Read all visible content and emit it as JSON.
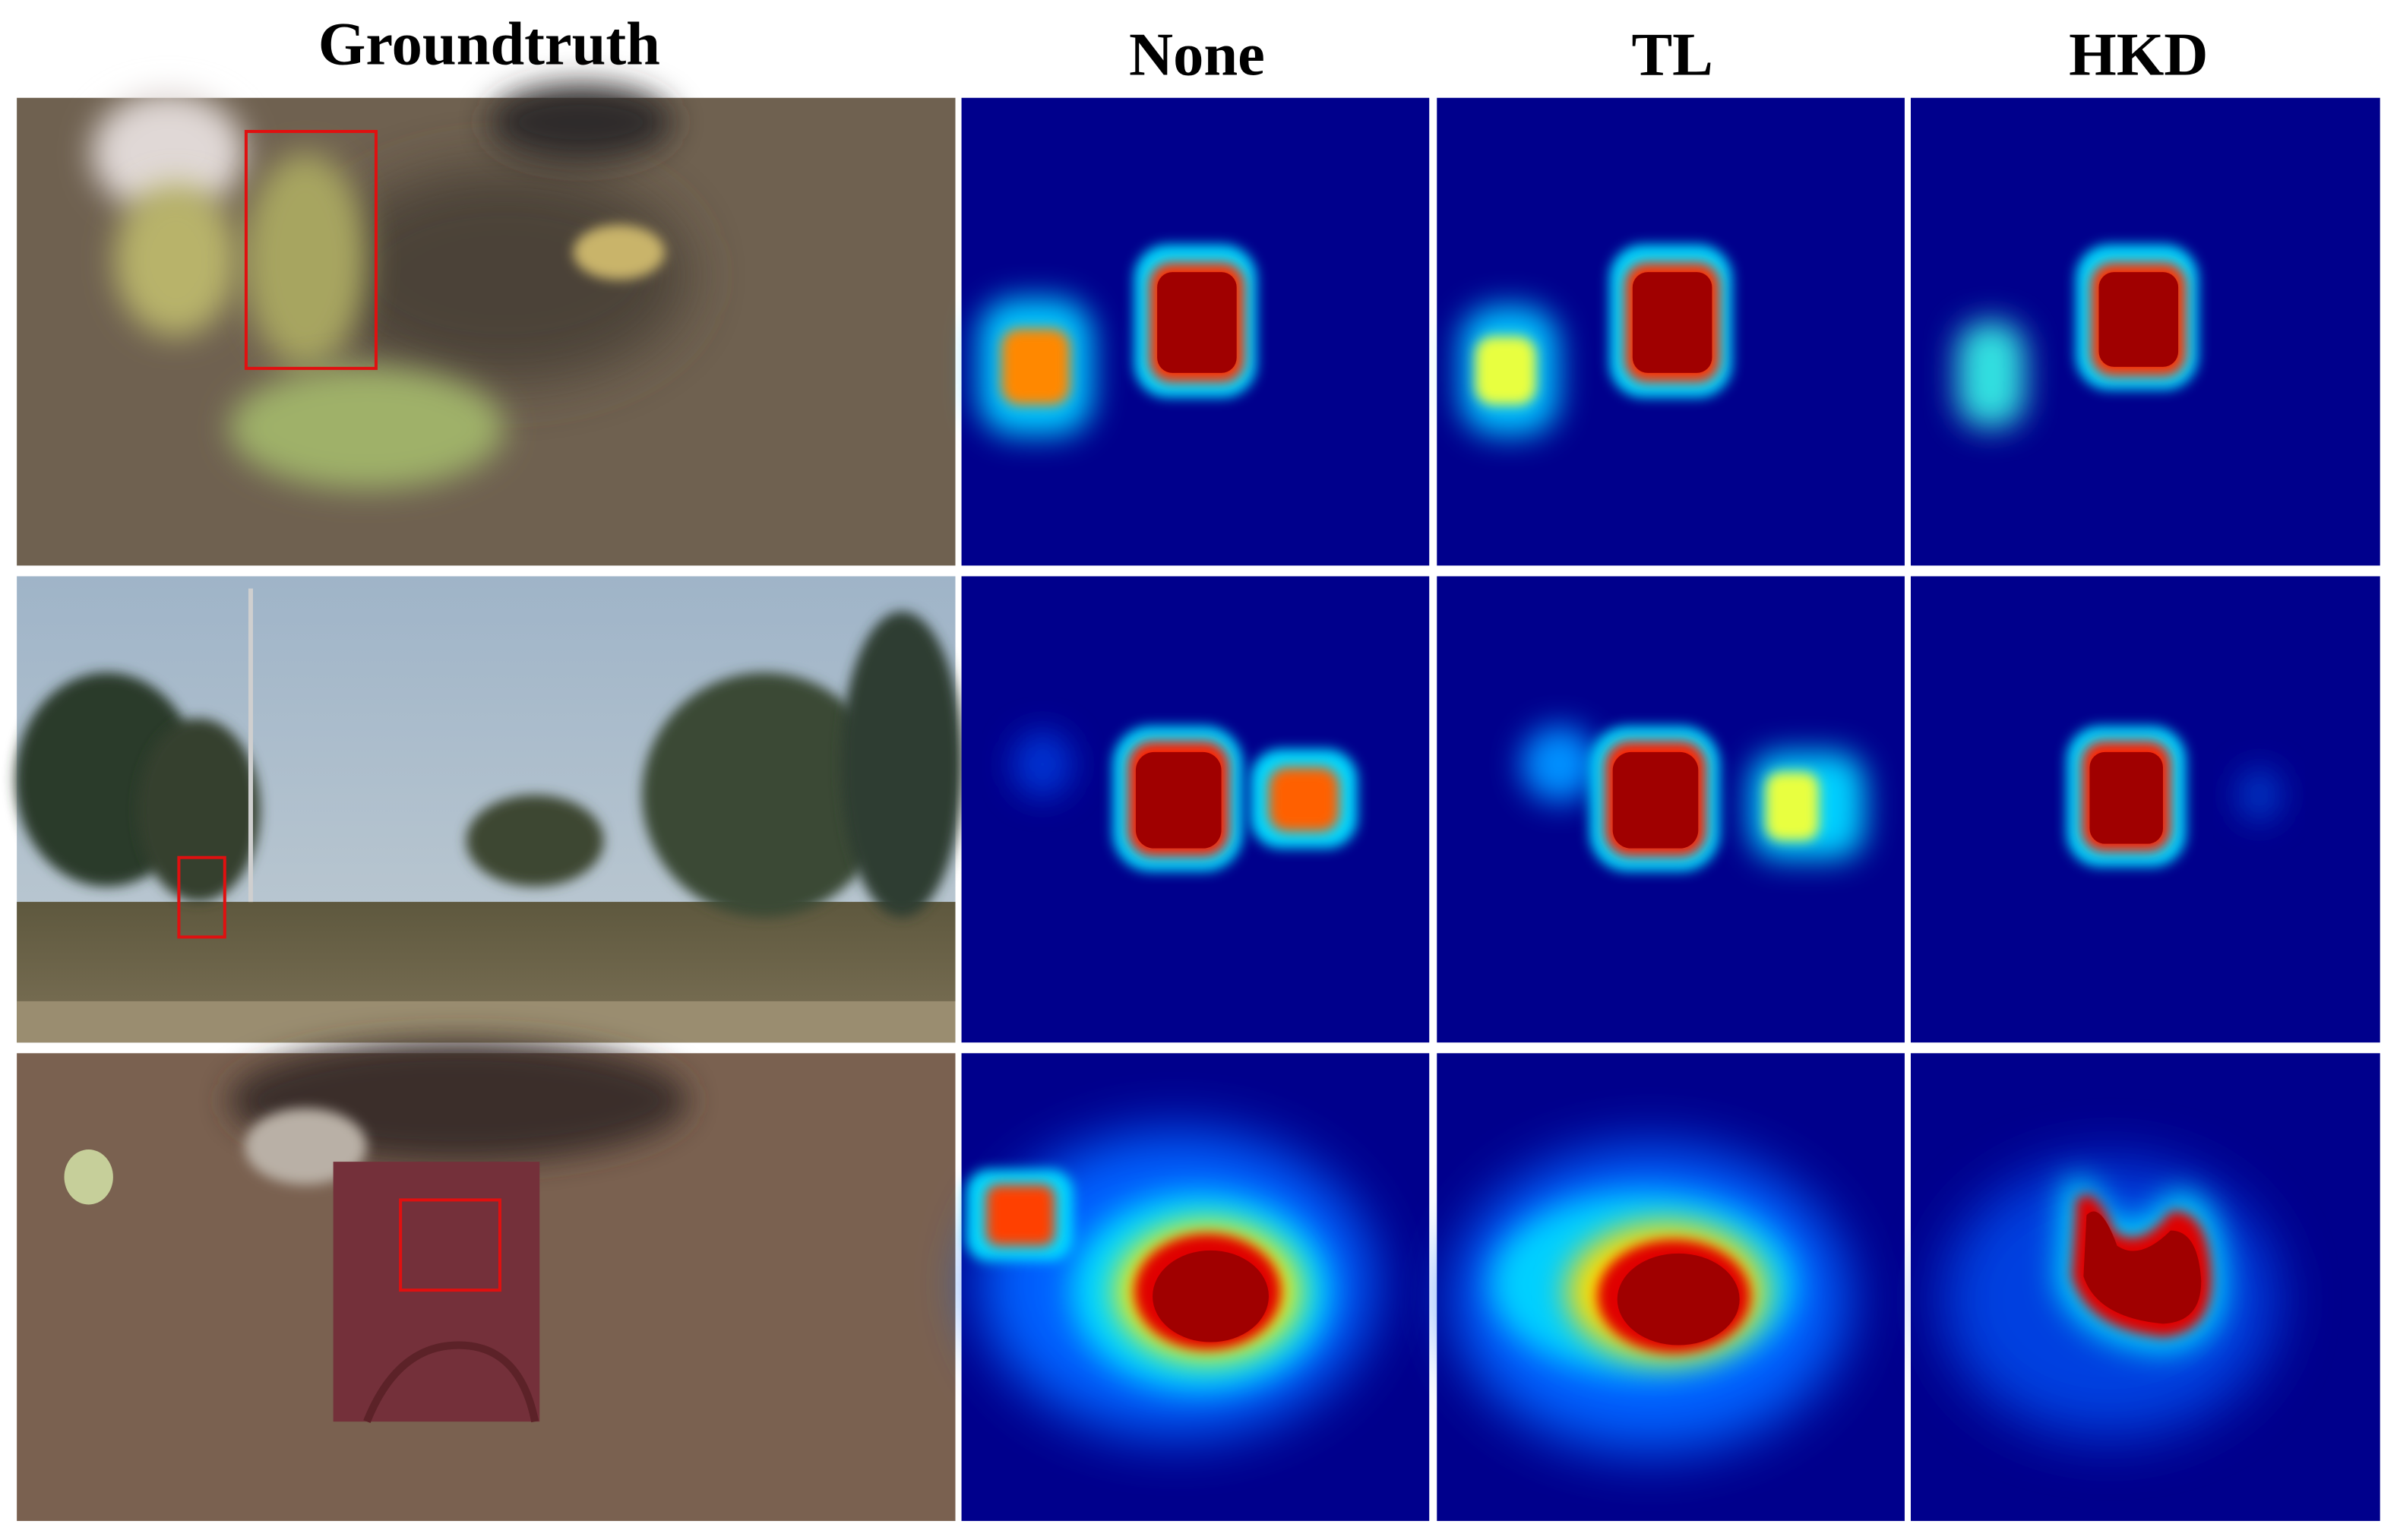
{
  "header": {
    "columns": [
      "Groundtruth",
      "None",
      "TL",
      "HKD"
    ]
  }
}
